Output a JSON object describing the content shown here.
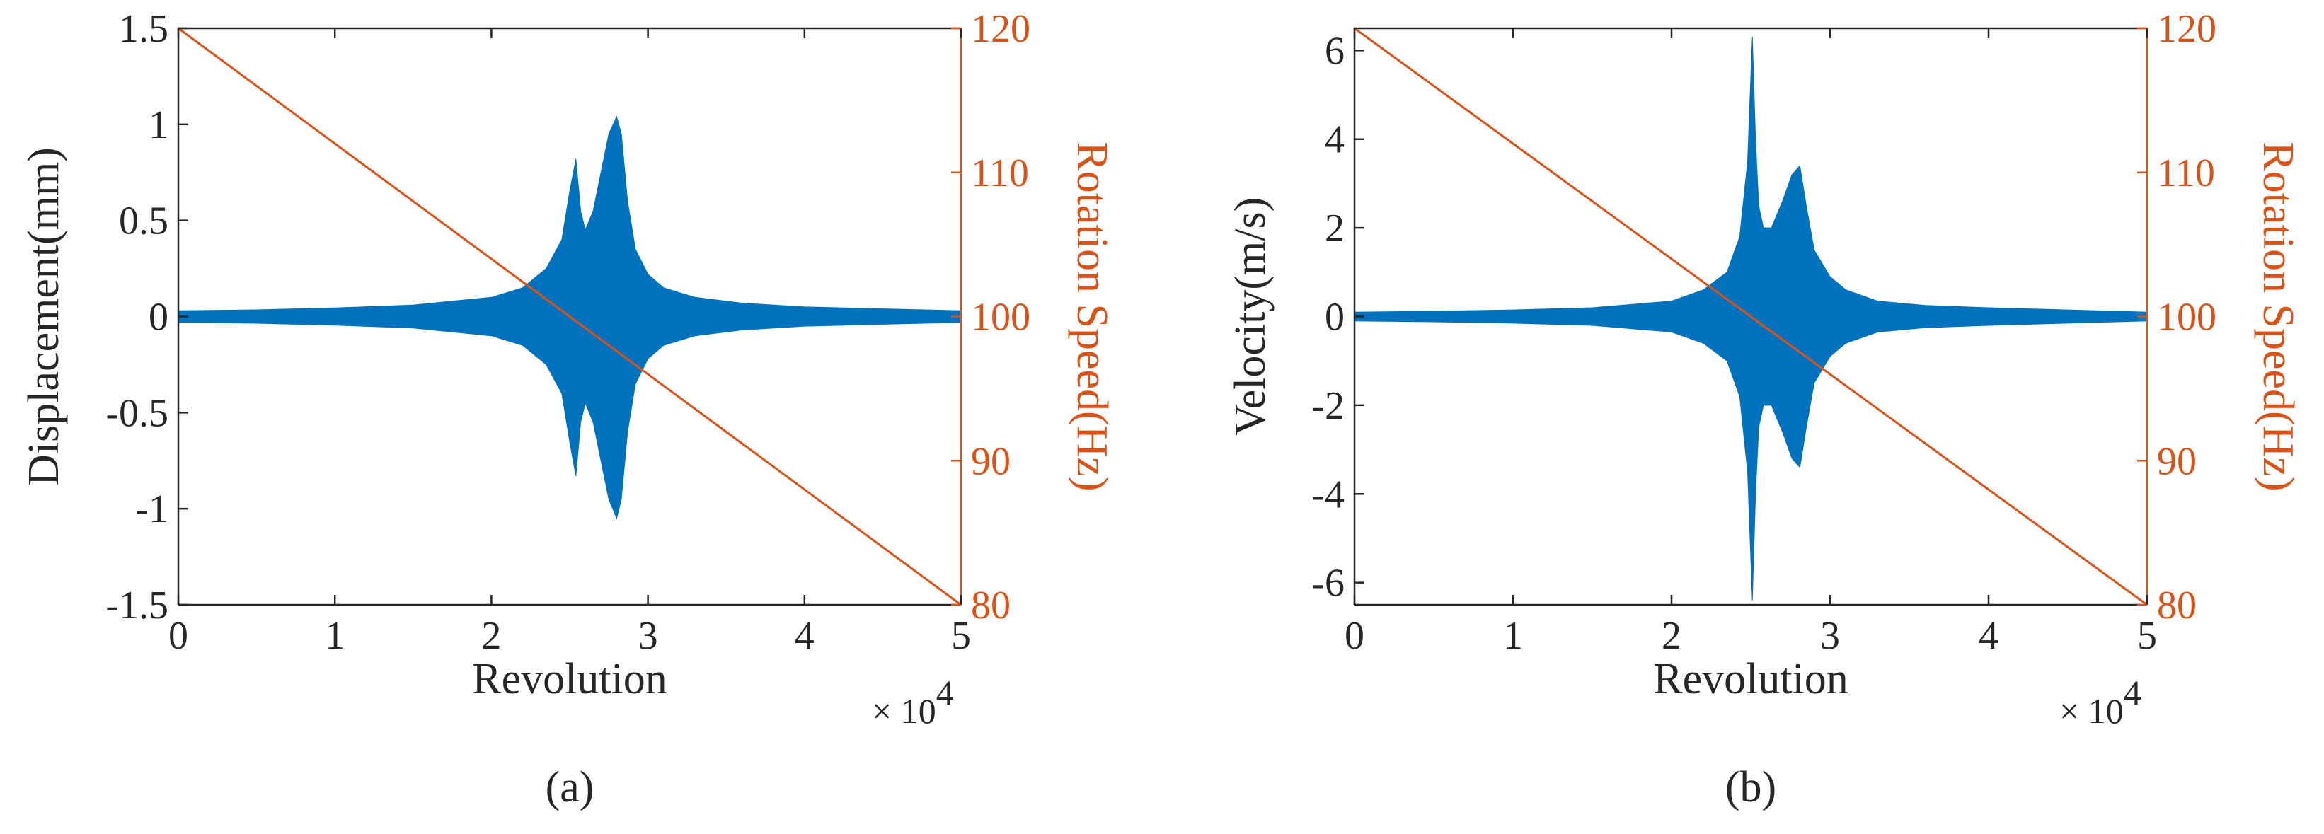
{
  "chart_data": [
    {
      "type": "line",
      "caption": "(a)",
      "xlabel": "Revolution",
      "x_exponent_label": "× 10",
      "x_exponent_power": "4",
      "xlim": [
        0,
        50000
      ],
      "x_ticks": [
        0,
        10000,
        20000,
        30000,
        40000,
        50000
      ],
      "x_tick_labels": [
        "0",
        "1",
        "2",
        "3",
        "4",
        "5"
      ],
      "ylabel": "Displacement(mm)",
      "ylim": [
        -1.5,
        1.5
      ],
      "y_ticks": [
        -1.5,
        -1,
        -0.5,
        0,
        0.5,
        1,
        1.5
      ],
      "y_tick_labels": [
        "-1.5",
        "-1",
        "-0.5",
        "0",
        "0.5",
        "1",
        "1.5"
      ],
      "ylabel_right": "Rotation Speed(Hz)",
      "ylim_right": [
        80,
        120
      ],
      "y_ticks_right": [
        80,
        90,
        100,
        110,
        120
      ],
      "y_tick_labels_right": [
        "80",
        "90",
        "100",
        "110",
        "120"
      ],
      "grid": false,
      "series": [
        {
          "axis": "left",
          "color": "#0072BD",
          "style": "envelope",
          "x": [
            0,
            5000,
            10000,
            15000,
            20000,
            22000,
            23500,
            24500,
            25000,
            25400,
            25700,
            26000,
            26500,
            27000,
            27500,
            28000,
            28300,
            28700,
            29200,
            30000,
            31000,
            33000,
            36000,
            40000,
            45000,
            50000
          ],
          "upper": [
            0.03,
            0.035,
            0.045,
            0.06,
            0.1,
            0.15,
            0.25,
            0.4,
            0.65,
            0.82,
            0.55,
            0.45,
            0.55,
            0.75,
            0.95,
            1.04,
            0.95,
            0.6,
            0.35,
            0.22,
            0.15,
            0.1,
            0.07,
            0.05,
            0.04,
            0.03
          ],
          "lower": [
            -0.03,
            -0.035,
            -0.045,
            -0.06,
            -0.1,
            -0.15,
            -0.25,
            -0.4,
            -0.65,
            -0.83,
            -0.55,
            -0.45,
            -0.55,
            -0.75,
            -0.95,
            -1.05,
            -0.95,
            -0.6,
            -0.35,
            -0.22,
            -0.15,
            -0.1,
            -0.07,
            -0.05,
            -0.04,
            -0.03
          ]
        },
        {
          "axis": "right",
          "color": "#D95319",
          "style": "line",
          "x": [
            0,
            50000
          ],
          "y": [
            120,
            80
          ]
        }
      ]
    },
    {
      "type": "line",
      "caption": "(b)",
      "xlabel": "Revolution",
      "x_exponent_label": "× 10",
      "x_exponent_power": "4",
      "xlim": [
        0,
        50000
      ],
      "x_ticks": [
        0,
        10000,
        20000,
        30000,
        40000,
        50000
      ],
      "x_tick_labels": [
        "0",
        "1",
        "2",
        "3",
        "4",
        "5"
      ],
      "ylabel": "Velocity(m/s)",
      "ylim": [
        -6.5,
        6.5
      ],
      "y_ticks": [
        -6,
        -4,
        -2,
        0,
        2,
        4,
        6
      ],
      "y_tick_labels": [
        "-6",
        "-4",
        "-2",
        "0",
        "2",
        "4",
        "6"
      ],
      "ylabel_right": "Rotation Speed(Hz)",
      "ylim_right": [
        80,
        120
      ],
      "y_ticks_right": [
        80,
        90,
        100,
        110,
        120
      ],
      "y_tick_labels_right": [
        "80",
        "90",
        "100",
        "110",
        "120"
      ],
      "grid": false,
      "series": [
        {
          "axis": "left",
          "color": "#0072BD",
          "style": "envelope",
          "x": [
            0,
            5000,
            10000,
            15000,
            20000,
            22000,
            23500,
            24300,
            24800,
            25100,
            25300,
            25500,
            25800,
            26300,
            27000,
            27600,
            28100,
            28500,
            29000,
            30000,
            31000,
            33000,
            36000,
            40000,
            45000,
            50000
          ],
          "upper": [
            0.1,
            0.12,
            0.15,
            0.2,
            0.35,
            0.6,
            1.0,
            1.8,
            3.5,
            6.3,
            4.0,
            2.5,
            2.0,
            2.0,
            2.6,
            3.2,
            3.4,
            2.5,
            1.5,
            0.9,
            0.6,
            0.35,
            0.25,
            0.2,
            0.15,
            0.1
          ],
          "lower": [
            -0.1,
            -0.12,
            -0.15,
            -0.2,
            -0.35,
            -0.6,
            -1.0,
            -1.8,
            -3.5,
            -6.4,
            -4.0,
            -2.5,
            -2.0,
            -2.0,
            -2.6,
            -3.2,
            -3.4,
            -2.5,
            -1.5,
            -0.9,
            -0.6,
            -0.35,
            -0.25,
            -0.2,
            -0.15,
            -0.1
          ]
        },
        {
          "axis": "right",
          "color": "#D95319",
          "style": "line",
          "x": [
            0,
            50000
          ],
          "y": [
            120,
            80
          ]
        }
      ]
    }
  ]
}
